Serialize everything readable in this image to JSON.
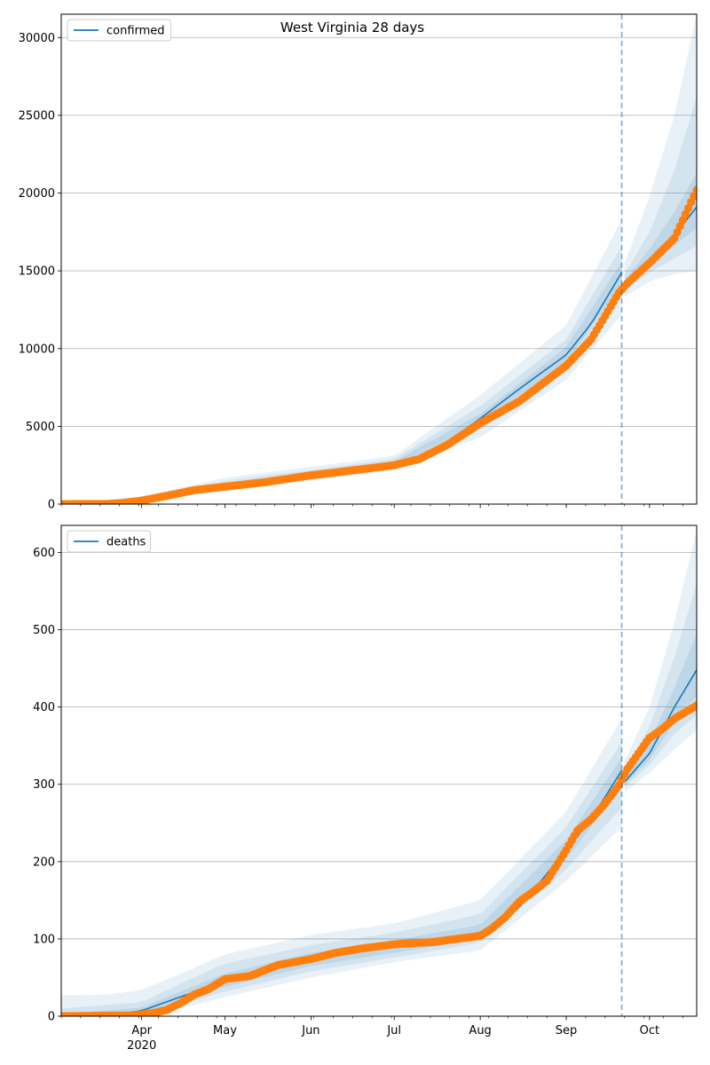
{
  "figure": {
    "title": "West Virginia 28 days"
  },
  "style": {
    "model_color": "#1f77b4",
    "band_color": "#1f77b4",
    "observed_color": "#ff7f0e",
    "grid_color": "#b0b0b0",
    "forecast_line_color": "#1f77b4"
  },
  "x_axis": {
    "tick_labels": [
      "Apr",
      "May",
      "Jun",
      "Jul",
      "Aug",
      "Sep",
      "Oct"
    ],
    "year_label": "2020"
  },
  "chart_data": [
    {
      "type": "line",
      "panel": "top",
      "series": [
        {
          "name": "confirmed",
          "role": "model"
        },
        {
          "role": "observed"
        }
      ],
      "legend": {
        "label": "confirmed",
        "placement": "top-left"
      },
      "ylim": [
        0,
        31500
      ],
      "y_ticks": [
        0,
        5000,
        10000,
        15000,
        20000,
        25000,
        30000
      ],
      "grid": "horizontal",
      "forecast_start": "2020-09-21",
      "x_range": [
        "2020-03-03",
        "2020-10-18"
      ],
      "model": [
        [
          "2020-03-03",
          0
        ],
        [
          "2020-03-15",
          10
        ],
        [
          "2020-03-22",
          50
        ],
        [
          "2020-03-29",
          230
        ],
        [
          "2020-04-05",
          430
        ],
        [
          "2020-04-12",
          680
        ],
        [
          "2020-04-20",
          950
        ],
        [
          "2020-05-01",
          1230
        ],
        [
          "2020-05-15",
          1550
        ],
        [
          "2020-06-01",
          1900
        ],
        [
          "2020-06-15",
          2200
        ],
        [
          "2020-07-01",
          2600
        ],
        [
          "2020-07-10",
          3100
        ],
        [
          "2020-07-20",
          4000
        ],
        [
          "2020-08-01",
          5500
        ],
        [
          "2020-08-15",
          7400
        ],
        [
          "2020-09-01",
          9600
        ],
        [
          "2020-09-10",
          11600
        ],
        [
          "2020-09-21",
          14900
        ],
        [
          "2020-09-22",
          14100
        ],
        [
          "2020-10-01",
          15600
        ],
        [
          "2020-10-10",
          17300
        ],
        [
          "2020-10-18",
          19100
        ]
      ],
      "band_outer": {
        "upper": [
          [
            "2020-03-03",
            0
          ],
          [
            "2020-04-01",
            500
          ],
          [
            "2020-05-01",
            1700
          ],
          [
            "2020-06-01",
            2400
          ],
          [
            "2020-07-01",
            3100
          ],
          [
            "2020-08-01",
            7000
          ],
          [
            "2020-09-01",
            11500
          ],
          [
            "2020-09-21",
            18300
          ],
          [
            "2020-09-22",
            15500
          ],
          [
            "2020-10-01",
            19800
          ],
          [
            "2020-10-10",
            25000
          ],
          [
            "2020-10-18",
            31500
          ]
        ],
        "lower": [
          [
            "2020-03-03",
            0
          ],
          [
            "2020-04-01",
            300
          ],
          [
            "2020-05-01",
            900
          ],
          [
            "2020-06-01",
            1500
          ],
          [
            "2020-07-01",
            2200
          ],
          [
            "2020-08-01",
            4300
          ],
          [
            "2020-09-01",
            8000
          ],
          [
            "2020-09-21",
            12200
          ],
          [
            "2020-09-22",
            13300
          ],
          [
            "2020-10-01",
            14300
          ],
          [
            "2020-10-10",
            14800
          ],
          [
            "2020-10-18",
            15000
          ]
        ]
      },
      "band_mid": {
        "upper": [
          [
            "2020-03-03",
            0
          ],
          [
            "2020-04-01",
            450
          ],
          [
            "2020-05-01",
            1500
          ],
          [
            "2020-06-01",
            2200
          ],
          [
            "2020-07-01",
            2900
          ],
          [
            "2020-08-01",
            6300
          ],
          [
            "2020-09-01",
            10600
          ],
          [
            "2020-09-21",
            16600
          ],
          [
            "2020-09-22",
            14800
          ],
          [
            "2020-10-01",
            17500
          ],
          [
            "2020-10-10",
            21500
          ],
          [
            "2020-10-18",
            26200
          ]
        ],
        "lower": [
          [
            "2020-03-03",
            0
          ],
          [
            "2020-04-01",
            350
          ],
          [
            "2020-05-01",
            1050
          ],
          [
            "2020-06-01",
            1650
          ],
          [
            "2020-07-01",
            2350
          ],
          [
            "2020-08-01",
            4800
          ],
          [
            "2020-09-01",
            8700
          ],
          [
            "2020-09-21",
            13400
          ],
          [
            "2020-09-22",
            13700
          ],
          [
            "2020-10-01",
            14900
          ],
          [
            "2020-10-10",
            15800
          ],
          [
            "2020-10-18",
            16600
          ]
        ]
      },
      "band_inner": {
        "upper": [
          [
            "2020-03-03",
            0
          ],
          [
            "2020-04-01",
            420
          ],
          [
            "2020-05-01",
            1350
          ],
          [
            "2020-06-01",
            2050
          ],
          [
            "2020-07-01",
            2750
          ],
          [
            "2020-08-01",
            5800
          ],
          [
            "2020-09-01",
            10100
          ],
          [
            "2020-09-21",
            15600
          ],
          [
            "2020-09-22",
            14400
          ],
          [
            "2020-10-01",
            16400
          ],
          [
            "2020-10-10",
            18800
          ],
          [
            "2020-10-18",
            21300
          ]
        ],
        "lower": [
          [
            "2020-03-03",
            0
          ],
          [
            "2020-04-01",
            380
          ],
          [
            "2020-05-01",
            1150
          ],
          [
            "2020-06-01",
            1760
          ],
          [
            "2020-07-01",
            2460
          ],
          [
            "2020-08-01",
            5200
          ],
          [
            "2020-09-01",
            9100
          ],
          [
            "2020-09-21",
            14200
          ],
          [
            "2020-09-22",
            13900
          ],
          [
            "2020-10-01",
            15300
          ],
          [
            "2020-10-10",
            16600
          ],
          [
            "2020-10-18",
            17800
          ]
        ]
      },
      "observed": [
        [
          "2020-03-03",
          0
        ],
        [
          "2020-03-20",
          10
        ],
        [
          "2020-03-25",
          70
        ],
        [
          "2020-04-01",
          220
        ],
        [
          "2020-04-10",
          530
        ],
        [
          "2020-04-20",
          900
        ],
        [
          "2020-05-01",
          1120
        ],
        [
          "2020-05-15",
          1400
        ],
        [
          "2020-06-01",
          1850
        ],
        [
          "2020-06-15",
          2150
        ],
        [
          "2020-07-01",
          2500
        ],
        [
          "2020-07-10",
          2900
        ],
        [
          "2020-07-20",
          3800
        ],
        [
          "2020-08-01",
          5200
        ],
        [
          "2020-08-15",
          6600
        ],
        [
          "2020-09-01",
          8900
        ],
        [
          "2020-09-10",
          10600
        ],
        [
          "2020-09-20",
          13600
        ],
        [
          "2020-09-23",
          14200
        ],
        [
          "2020-10-01",
          15500
        ],
        [
          "2020-10-10",
          17100
        ],
        [
          "2020-10-18",
          20200
        ]
      ]
    },
    {
      "type": "line",
      "panel": "bottom",
      "series": [
        {
          "name": "deaths",
          "role": "model"
        },
        {
          "role": "observed"
        }
      ],
      "legend": {
        "label": "deaths",
        "placement": "top-left"
      },
      "ylim": [
        0,
        635
      ],
      "y_ticks": [
        0,
        100,
        200,
        300,
        400,
        500,
        600
      ],
      "grid": "horizontal",
      "forecast_start": "2020-09-21",
      "x_range": [
        "2020-03-03",
        "2020-10-18"
      ],
      "model": [
        [
          "2020-03-03",
          0
        ],
        [
          "2020-03-20",
          1
        ],
        [
          "2020-04-01",
          7
        ],
        [
          "2020-04-15",
          25
        ],
        [
          "2020-05-01",
          45
        ],
        [
          "2020-05-15",
          60
        ],
        [
          "2020-06-01",
          73
        ],
        [
          "2020-06-15",
          83
        ],
        [
          "2020-07-01",
          90
        ],
        [
          "2020-07-15",
          95
        ],
        [
          "2020-08-01",
          108
        ],
        [
          "2020-08-15",
          140
        ],
        [
          "2020-09-01",
          215
        ],
        [
          "2020-09-10",
          255
        ],
        [
          "2020-09-21",
          318
        ],
        [
          "2020-09-22",
          303
        ],
        [
          "2020-10-01",
          340
        ],
        [
          "2020-10-10",
          400
        ],
        [
          "2020-10-18",
          448
        ]
      ],
      "band_outer": {
        "upper": [
          [
            "2020-03-03",
            27
          ],
          [
            "2020-03-20",
            28
          ],
          [
            "2020-04-01",
            34
          ],
          [
            "2020-04-15",
            55
          ],
          [
            "2020-05-01",
            80
          ],
          [
            "2020-06-01",
            105
          ],
          [
            "2020-07-01",
            120
          ],
          [
            "2020-08-01",
            150
          ],
          [
            "2020-09-01",
            265
          ],
          [
            "2020-09-21",
            385
          ],
          [
            "2020-09-22",
            330
          ],
          [
            "2020-10-01",
            400
          ],
          [
            "2020-10-10",
            510
          ],
          [
            "2020-10-18",
            630
          ]
        ],
        "lower": [
          [
            "2020-03-03",
            0
          ],
          [
            "2020-04-01",
            0
          ],
          [
            "2020-04-15",
            10
          ],
          [
            "2020-05-01",
            25
          ],
          [
            "2020-06-01",
            50
          ],
          [
            "2020-07-01",
            70
          ],
          [
            "2020-08-01",
            85
          ],
          [
            "2020-09-01",
            175
          ],
          [
            "2020-09-21",
            245
          ],
          [
            "2020-09-22",
            290
          ],
          [
            "2020-10-01",
            315
          ],
          [
            "2020-10-10",
            345
          ],
          [
            "2020-10-18",
            370
          ]
        ]
      },
      "band_mid": {
        "upper": [
          [
            "2020-03-03",
            10
          ],
          [
            "2020-04-01",
            18
          ],
          [
            "2020-04-15",
            42
          ],
          [
            "2020-05-01",
            68
          ],
          [
            "2020-06-01",
            92
          ],
          [
            "2020-07-01",
            108
          ],
          [
            "2020-08-01",
            132
          ],
          [
            "2020-09-01",
            245
          ],
          [
            "2020-09-21",
            355
          ],
          [
            "2020-09-22",
            318
          ],
          [
            "2020-10-01",
            375
          ],
          [
            "2020-10-10",
            465
          ],
          [
            "2020-10-18",
            560
          ]
        ],
        "lower": [
          [
            "2020-03-03",
            0
          ],
          [
            "2020-04-01",
            2
          ],
          [
            "2020-04-15",
            15
          ],
          [
            "2020-05-01",
            32
          ],
          [
            "2020-06-01",
            58
          ],
          [
            "2020-07-01",
            76
          ],
          [
            "2020-08-01",
            95
          ],
          [
            "2020-09-01",
            190
          ],
          [
            "2020-09-21",
            270
          ],
          [
            "2020-09-22",
            296
          ],
          [
            "2020-10-01",
            325
          ],
          [
            "2020-10-10",
            365
          ],
          [
            "2020-10-18",
            390
          ]
        ]
      },
      "band_inner": {
        "upper": [
          [
            "2020-03-03",
            3
          ],
          [
            "2020-04-01",
            11
          ],
          [
            "2020-04-15",
            32
          ],
          [
            "2020-05-01",
            55
          ],
          [
            "2020-06-01",
            82
          ],
          [
            "2020-07-01",
            98
          ],
          [
            "2020-08-01",
            118
          ],
          [
            "2020-09-01",
            228
          ],
          [
            "2020-09-21",
            335
          ],
          [
            "2020-09-22",
            310
          ],
          [
            "2020-10-01",
            355
          ],
          [
            "2020-10-10",
            425
          ],
          [
            "2020-10-18",
            495
          ]
        ],
        "lower": [
          [
            "2020-03-03",
            0
          ],
          [
            "2020-04-01",
            4
          ],
          [
            "2020-04-15",
            19
          ],
          [
            "2020-05-01",
            38
          ],
          [
            "2020-06-01",
            65
          ],
          [
            "2020-07-01",
            82
          ],
          [
            "2020-08-01",
            100
          ],
          [
            "2020-09-01",
            203
          ],
          [
            "2020-09-21",
            298
          ],
          [
            "2020-09-22",
            299
          ],
          [
            "2020-10-01",
            332
          ],
          [
            "2020-10-10",
            380
          ],
          [
            "2020-10-18",
            415
          ]
        ]
      },
      "observed": [
        [
          "2020-03-03",
          0
        ],
        [
          "2020-03-29",
          1
        ],
        [
          "2020-04-05",
          4
        ],
        [
          "2020-04-10",
          8
        ],
        [
          "2020-04-15",
          17
        ],
        [
          "2020-04-20",
          28
        ],
        [
          "2020-04-25",
          35
        ],
        [
          "2020-05-01",
          48
        ],
        [
          "2020-05-10",
          52
        ],
        [
          "2020-05-20",
          66
        ],
        [
          "2020-06-01",
          74
        ],
        [
          "2020-06-10",
          82
        ],
        [
          "2020-06-20",
          88
        ],
        [
          "2020-07-01",
          93
        ],
        [
          "2020-07-15",
          96
        ],
        [
          "2020-08-01",
          104
        ],
        [
          "2020-08-05",
          113
        ],
        [
          "2020-08-10",
          128
        ],
        [
          "2020-08-15",
          148
        ],
        [
          "2020-08-20",
          161
        ],
        [
          "2020-08-25",
          175
        ],
        [
          "2020-09-01",
          215
        ],
        [
          "2020-09-05",
          240
        ],
        [
          "2020-09-10",
          255
        ],
        [
          "2020-09-15",
          275
        ],
        [
          "2020-09-20",
          299
        ],
        [
          "2020-09-23",
          320
        ],
        [
          "2020-09-28",
          345
        ],
        [
          "2020-10-01",
          360
        ],
        [
          "2020-10-05",
          370
        ],
        [
          "2020-10-10",
          385
        ],
        [
          "2020-10-18",
          402
        ]
      ]
    }
  ]
}
